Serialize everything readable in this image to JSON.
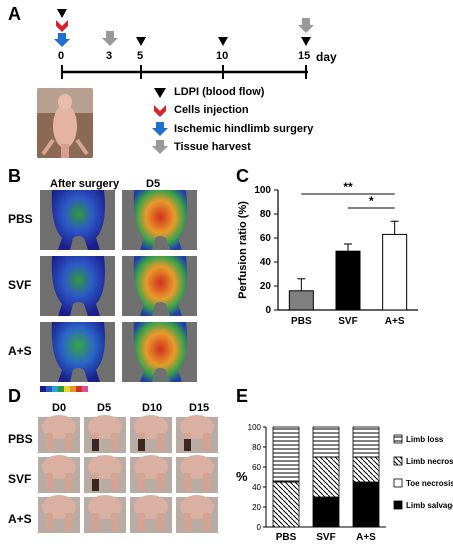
{
  "panelA": {
    "letter": "A",
    "timeline": {
      "ticks": [
        "0",
        "3",
        "5",
        "10",
        "15"
      ],
      "unit": "day"
    },
    "legend": [
      {
        "icon": "black-triangle-icon",
        "label": "LDPI (blood flow)",
        "color": "#000000"
      },
      {
        "icon": "red-chevron-icon",
        "label": "Cells injection",
        "color": "#d9212a"
      },
      {
        "icon": "blue-arrow-icon",
        "label": "Ischemic hindlimb surgery",
        "color": "#1f6fd0"
      },
      {
        "icon": "gray-arrow-icon",
        "label": "Tissue harvest",
        "color": "#9a9a9a"
      }
    ]
  },
  "panelB": {
    "letter": "B",
    "cols": [
      "After surgery",
      "D5"
    ],
    "rows": [
      "PBS",
      "SVF",
      "A+S"
    ]
  },
  "panelC": {
    "letter": "C",
    "chart_data": {
      "type": "bar",
      "categories": [
        "PBS",
        "SVF",
        "A+S"
      ],
      "values": [
        16,
        49,
        63
      ],
      "errors": [
        10,
        6,
        11
      ],
      "bar_colors": [
        "#808080",
        "#000000",
        "#ffffff"
      ],
      "ylabel": "Perfusion ratio (%)",
      "ylim": [
        0,
        100
      ],
      "yticks": [
        "0",
        "20",
        "40",
        "60",
        "80",
        "100"
      ],
      "significance": [
        {
          "from": "PBS",
          "to": "A+S",
          "label": "**"
        },
        {
          "from": "SVF",
          "to": "A+S",
          "label": "*"
        }
      ]
    }
  },
  "panelD": {
    "letter": "D",
    "cols": [
      "D0",
      "D5",
      "D10",
      "D15"
    ],
    "rows": [
      "PBS",
      "SVF",
      "A+S"
    ]
  },
  "panelE": {
    "letter": "E",
    "chart_data": {
      "type": "bar",
      "stacked": true,
      "categories": [
        "PBS",
        "SVF",
        "A+S"
      ],
      "series": [
        {
          "name": "Limb salvage",
          "values": [
            0,
            30,
            45
          ],
          "pattern": "solid-black"
        },
        {
          "name": "Toe necrosis",
          "values": [
            0,
            0,
            0
          ],
          "pattern": "white"
        },
        {
          "name": "Limb necrosis",
          "values": [
            45,
            40,
            25
          ],
          "pattern": "diagonal"
        },
        {
          "name": "Limb loss",
          "values": [
            55,
            30,
            30
          ],
          "pattern": "horizontal"
        }
      ],
      "ylabel": "%",
      "ylim": [
        0,
        100
      ],
      "yticks": [
        "0",
        "20",
        "40",
        "60",
        "80",
        "100"
      ]
    }
  }
}
